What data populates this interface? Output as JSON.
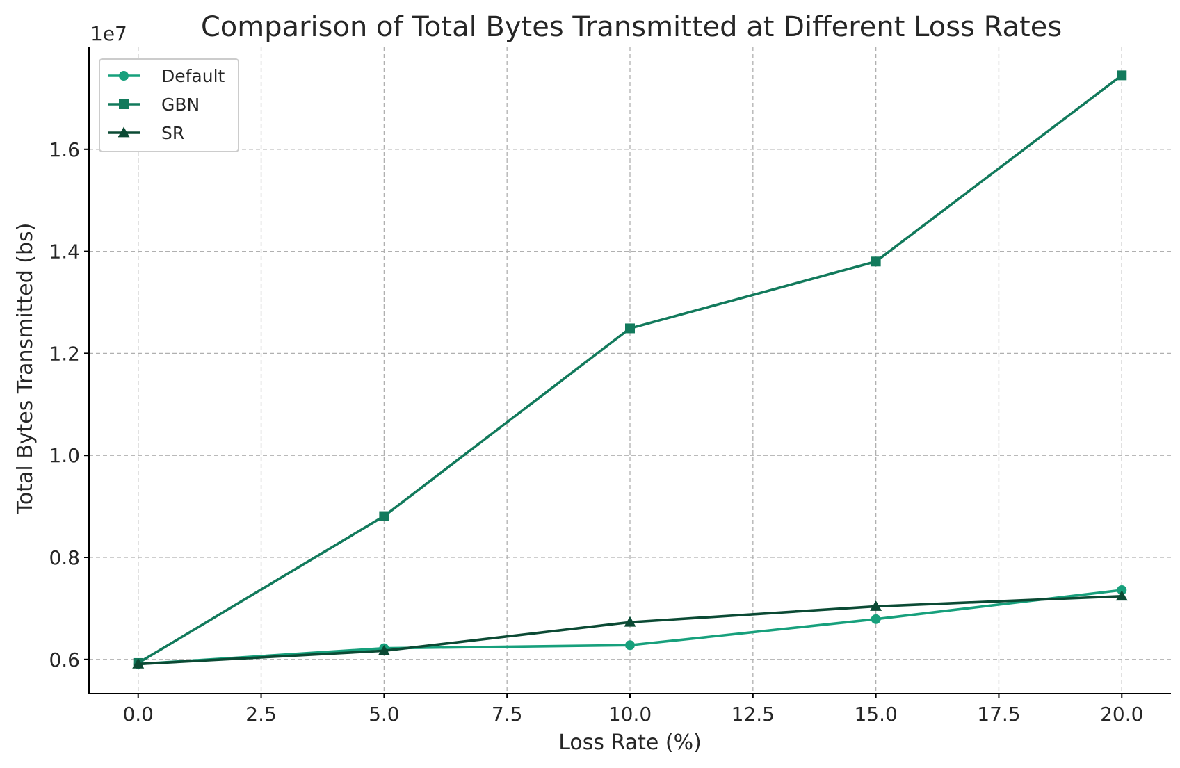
{
  "chart_data": {
    "type": "line",
    "title": "Comparison of Total Bytes Transmitted at Different Loss Rates",
    "xlabel": "Loss Rate (%)",
    "ylabel": "Total Bytes Transmitted (bs)",
    "y_offset_label": "1e7",
    "x": [
      0,
      5,
      10,
      15,
      20
    ],
    "xlim": [
      -1,
      21
    ],
    "ylim": [
      5330000,
      18000000
    ],
    "x_ticks": [
      0.0,
      2.5,
      5.0,
      7.5,
      10.0,
      12.5,
      15.0,
      17.5,
      20.0
    ],
    "x_tick_labels": [
      "0.0",
      "2.5",
      "5.0",
      "7.5",
      "10.0",
      "12.5",
      "15.0",
      "17.5",
      "20.0"
    ],
    "y_ticks": [
      6000000,
      8000000,
      10000000,
      12000000,
      14000000,
      16000000
    ],
    "y_tick_labels": [
      "0.6",
      "0.8",
      "1.0",
      "1.2",
      "1.4",
      "1.6"
    ],
    "grid": true,
    "legend_position": "top-left",
    "series": [
      {
        "name": "Default",
        "values": [
          5910000,
          6220000,
          6280000,
          6790000,
          7360000
        ],
        "color": "#17a07c",
        "marker": "circle"
      },
      {
        "name": "GBN",
        "values": [
          5930000,
          8810000,
          12490000,
          13800000,
          17450000
        ],
        "color": "#127a5c",
        "marker": "square"
      },
      {
        "name": "SR",
        "values": [
          5910000,
          6170000,
          6730000,
          7040000,
          7240000
        ],
        "color": "#0b4a34",
        "marker": "triangle"
      }
    ]
  }
}
